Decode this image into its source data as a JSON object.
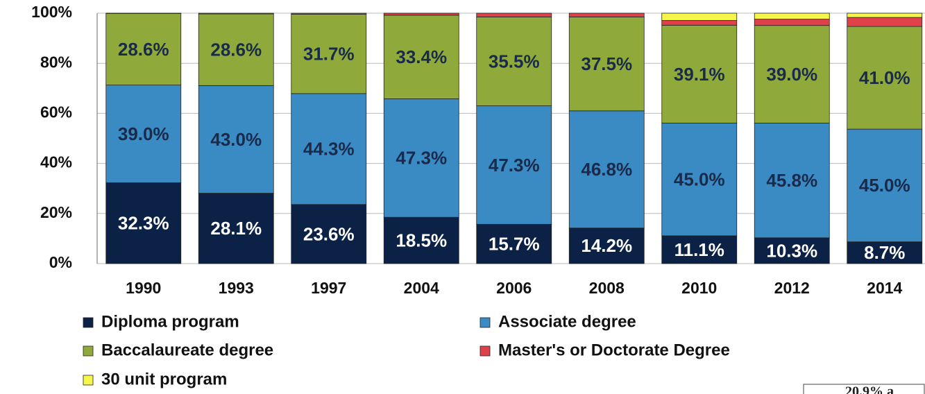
{
  "chart_data": {
    "type": "stacked_bar",
    "categories": [
      "1990",
      "1993",
      "1997",
      "2004",
      "2006",
      "2008",
      "2010",
      "2012",
      "2014"
    ],
    "series": [
      {
        "name": "Diploma program",
        "color": "#0b2145",
        "values": [
          32.3,
          28.1,
          23.6,
          18.5,
          15.7,
          14.2,
          11.1,
          10.3,
          8.7
        ],
        "value_labels": [
          "32.3%",
          "28.1%",
          "23.6%",
          "18.5%",
          "15.7%",
          "14.2%",
          "11.1%",
          "10.3%",
          "8.7%"
        ]
      },
      {
        "name": "Associate degree",
        "color": "#3a8ac4",
        "values": [
          39.0,
          43.0,
          44.3,
          47.3,
          47.3,
          46.8,
          45.0,
          45.8,
          45.0
        ],
        "value_labels": [
          "39.0%",
          "43.0%",
          "44.3%",
          "47.3%",
          "47.3%",
          "46.8%",
          "45.0%",
          "45.8%",
          "45.0%"
        ]
      },
      {
        "name": "Baccalaureate degree",
        "color": "#8faa3a",
        "values": [
          28.6,
          28.6,
          31.7,
          33.4,
          35.5,
          37.5,
          39.1,
          39.0,
          41.0
        ],
        "value_labels": [
          "28.6%",
          "28.6%",
          "31.7%",
          "33.4%",
          "35.5%",
          "37.5%",
          "39.1%",
          "39.0%",
          "41.0%"
        ]
      },
      {
        "name": "Master's or Doctorate Degree",
        "color": "#e0404a",
        "values": [
          0.1,
          0.3,
          0.4,
          0.8,
          1.5,
          1.5,
          1.9,
          2.5,
          3.6
        ]
      },
      {
        "name": "30 unit program",
        "color": "#f5f54a",
        "values": [
          0,
          0,
          0,
          0,
          0,
          0,
          2.9,
          2.4,
          1.7
        ]
      }
    ],
    "ylim": [
      0,
      100
    ],
    "yticks": [
      {
        "value": 0,
        "label": "0%"
      },
      {
        "value": 20,
        "label": "20%"
      },
      {
        "value": 40,
        "label": "40%"
      },
      {
        "value": 60,
        "label": "60%"
      },
      {
        "value": 80,
        "label": "80%"
      },
      {
        "value": 100,
        "label": "100%"
      }
    ],
    "grid": true,
    "legend": "bottom",
    "annotation": "20.9% a"
  }
}
